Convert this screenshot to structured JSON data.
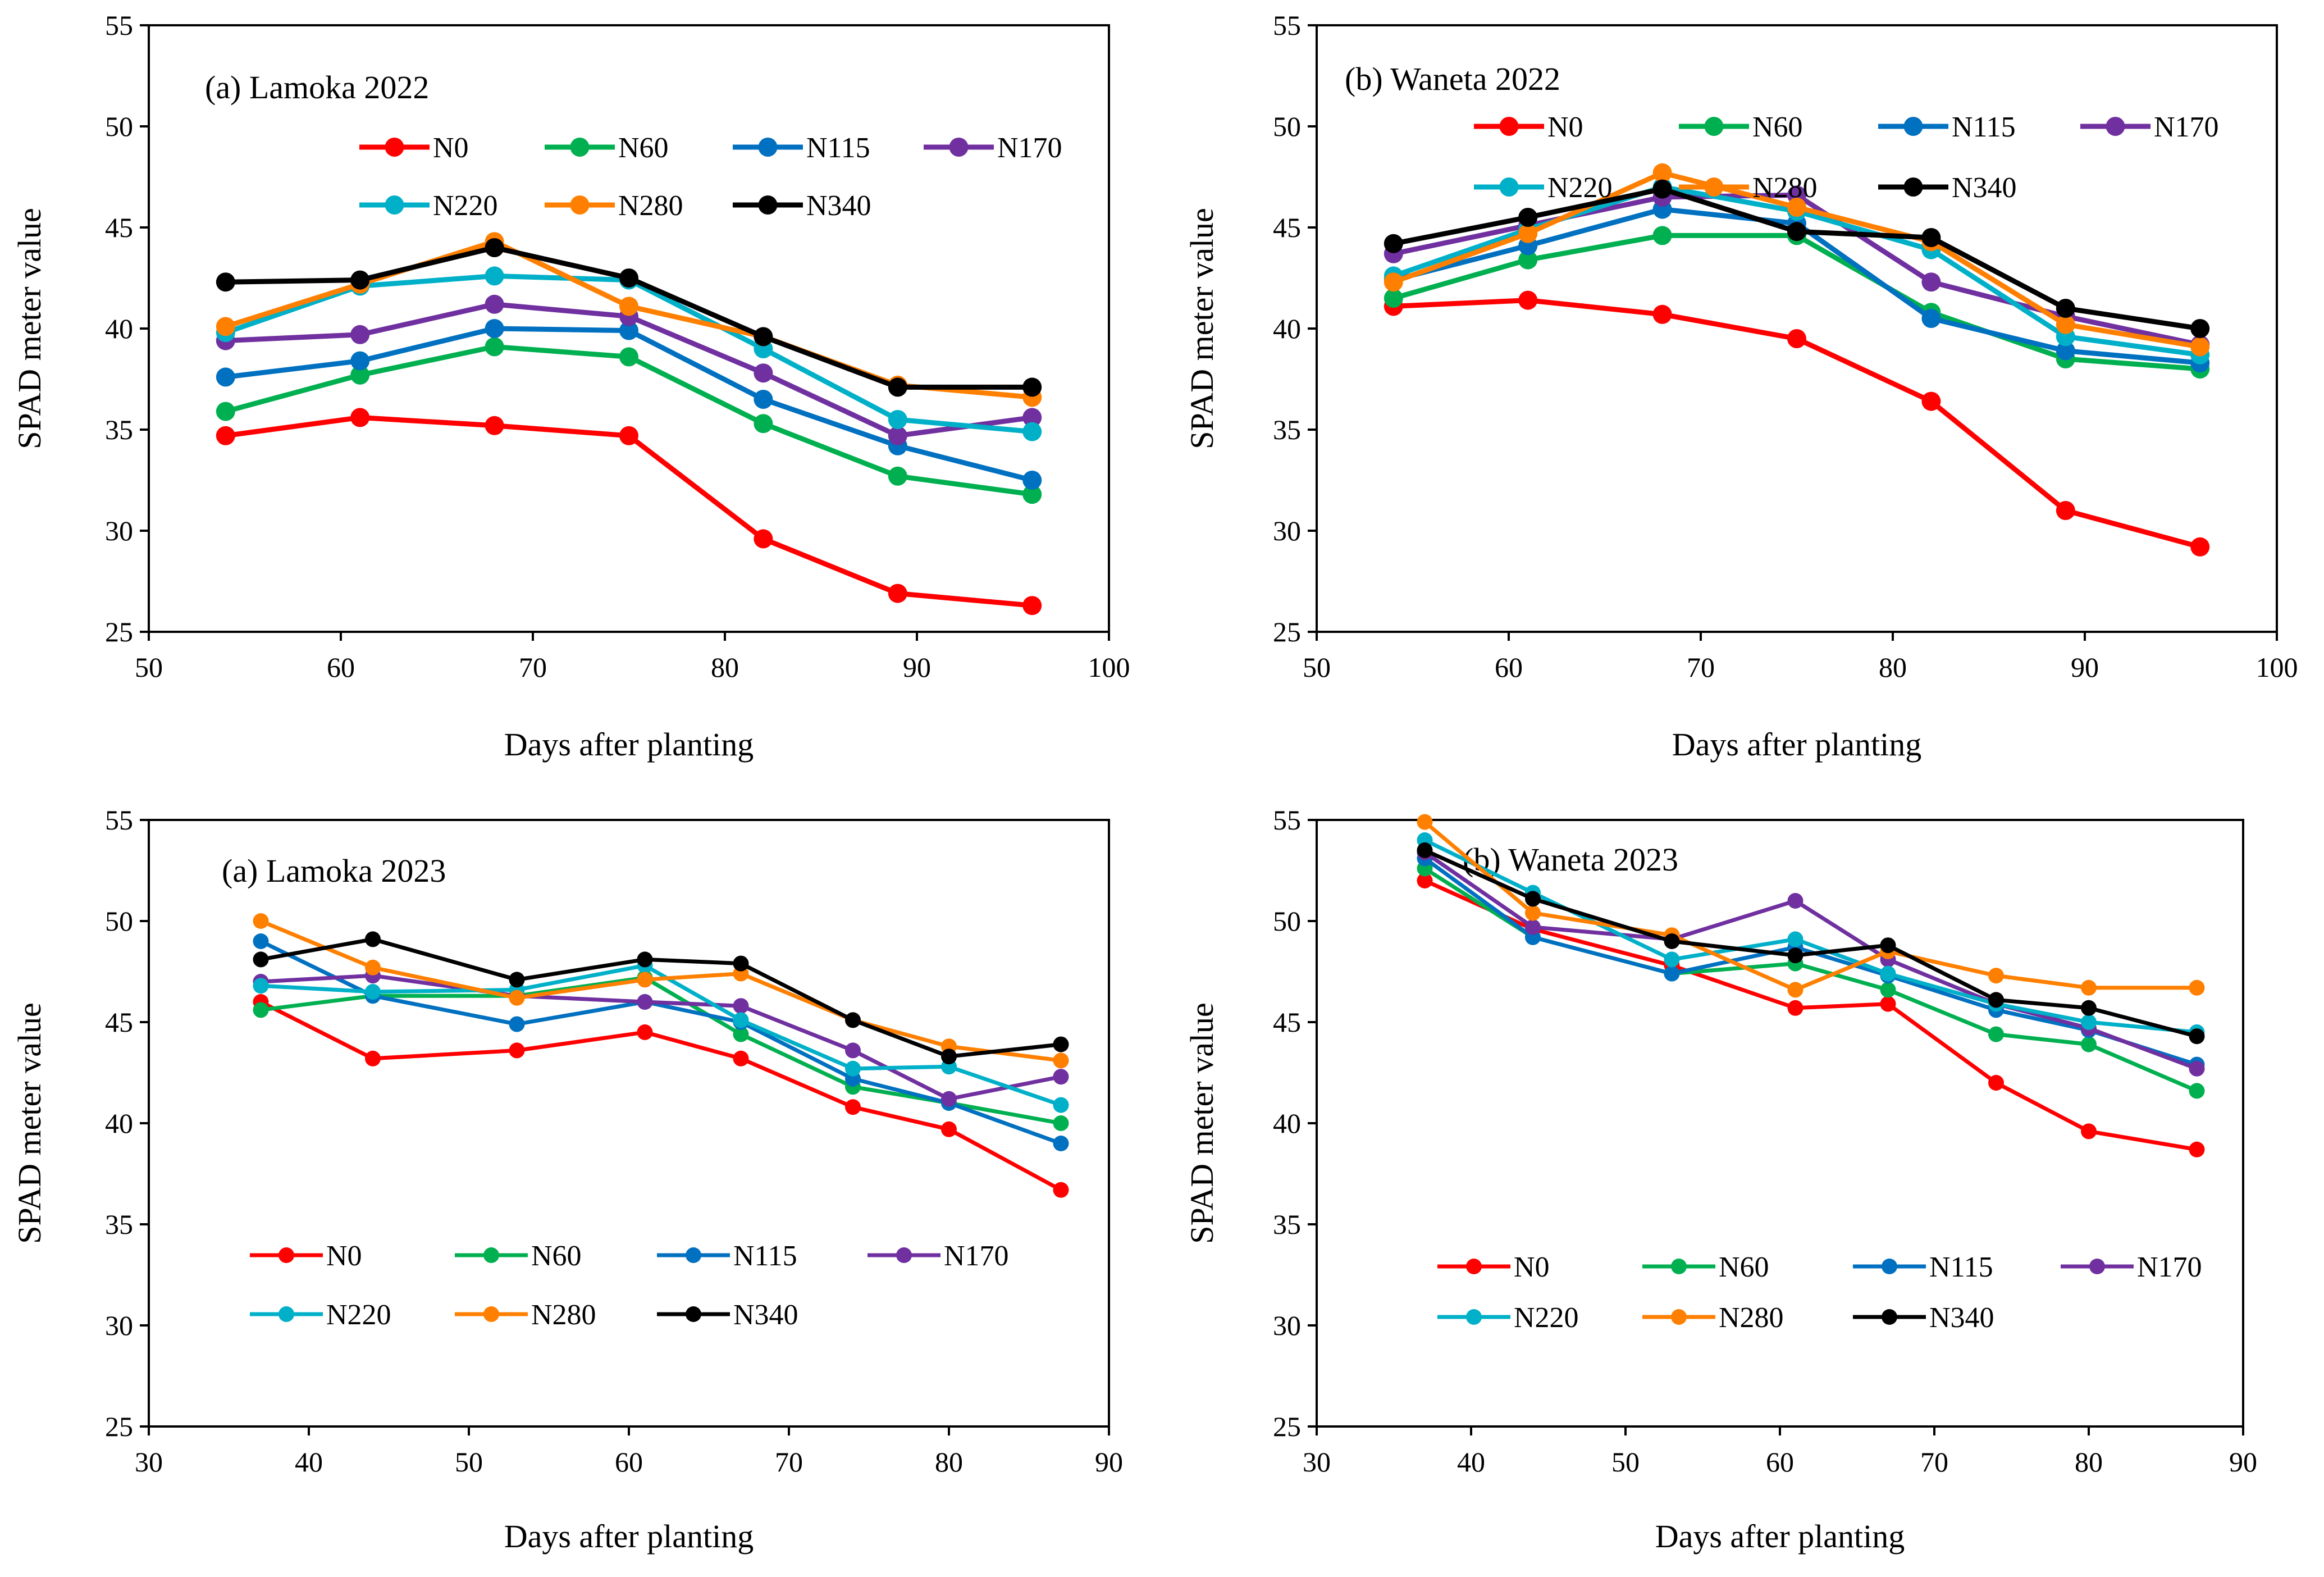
{
  "colors": {
    "N0": "#ff0000",
    "N60": "#00b050",
    "N115": "#0070c0",
    "N170": "#7030a0",
    "N220": "#00b0c8",
    "N280": "#ff7f00",
    "N340": "#000000"
  },
  "chart_data": [
    {
      "type": "line",
      "title": "(a) Lamoka 2022",
      "xlabel": "Days after planting",
      "ylabel": "SPAD meter value",
      "xlim": [
        50,
        100
      ],
      "ylim": [
        25,
        55
      ],
      "xticks": [
        50,
        60,
        70,
        80,
        90,
        100
      ],
      "yticks": [
        25,
        30,
        35,
        40,
        45,
        50,
        55
      ],
      "x": [
        54,
        61,
        68,
        75,
        82,
        89,
        96
      ],
      "series": [
        {
          "name": "N0",
          "values": [
            34.7,
            35.6,
            35.2,
            34.7,
            29.6,
            26.9,
            26.3
          ]
        },
        {
          "name": "N60",
          "values": [
            35.9,
            37.7,
            39.1,
            38.6,
            35.3,
            32.7,
            31.8
          ]
        },
        {
          "name": "N115",
          "values": [
            37.6,
            38.4,
            40.0,
            39.9,
            36.5,
            34.2,
            32.5
          ]
        },
        {
          "name": "N170",
          "values": [
            39.4,
            39.7,
            41.2,
            40.6,
            37.8,
            34.7,
            35.6
          ]
        },
        {
          "name": "N220",
          "values": [
            39.8,
            42.1,
            42.6,
            42.4,
            39.0,
            35.5,
            34.9
          ]
        },
        {
          "name": "N280",
          "values": [
            40.1,
            42.2,
            44.3,
            41.1,
            39.6,
            37.2,
            36.6
          ]
        },
        {
          "name": "N340",
          "values": [
            42.3,
            42.4,
            44.0,
            42.5,
            39.6,
            37.1,
            37.1
          ]
        }
      ]
    },
    {
      "type": "line",
      "title": "(b) Waneta 2022",
      "xlabel": "Days after planting",
      "ylabel": "SPAD meter value",
      "xlim": [
        50,
        100
      ],
      "ylim": [
        25,
        55
      ],
      "xticks": [
        50,
        60,
        70,
        80,
        90,
        100
      ],
      "yticks": [
        25,
        30,
        35,
        40,
        45,
        50,
        55
      ],
      "x": [
        54,
        61,
        68,
        75,
        82,
        89,
        96
      ],
      "series": [
        {
          "name": "N0",
          "values": [
            41.1,
            41.4,
            40.7,
            39.5,
            36.4,
            31.0,
            29.2
          ]
        },
        {
          "name": "N60",
          "values": [
            41.5,
            43.4,
            44.6,
            44.6,
            40.8,
            38.5,
            38.0
          ]
        },
        {
          "name": "N115",
          "values": [
            42.4,
            44.1,
            45.9,
            45.2,
            40.5,
            38.9,
            38.3
          ]
        },
        {
          "name": "N170",
          "values": [
            43.7,
            45.1,
            46.5,
            46.6,
            42.3,
            40.6,
            39.2
          ]
        },
        {
          "name": "N220",
          "values": [
            42.6,
            44.9,
            47.0,
            45.8,
            43.9,
            39.6,
            38.7
          ]
        },
        {
          "name": "N280",
          "values": [
            42.3,
            44.7,
            47.7,
            46.0,
            44.3,
            40.2,
            39.1
          ]
        },
        {
          "name": "N340",
          "values": [
            44.2,
            45.5,
            46.9,
            44.8,
            44.5,
            41.0,
            40.0
          ]
        }
      ]
    },
    {
      "type": "line",
      "title": "(a) Lamoka 2023",
      "xlabel": "Days after planting",
      "ylabel": "SPAD meter value",
      "xlim": [
        30,
        90
      ],
      "ylim": [
        25,
        55
      ],
      "xticks": [
        30,
        40,
        50,
        60,
        70,
        80,
        90
      ],
      "yticks": [
        25,
        30,
        35,
        40,
        45,
        50,
        55
      ],
      "x": [
        37,
        44,
        53,
        61,
        67,
        74,
        80,
        87
      ],
      "series": [
        {
          "name": "N0",
          "values": [
            46.0,
            43.2,
            43.6,
            44.5,
            43.2,
            40.8,
            39.7,
            36.7
          ]
        },
        {
          "name": "N60",
          "values": [
            45.6,
            46.3,
            46.3,
            47.2,
            44.4,
            41.8,
            41.0,
            40.0
          ]
        },
        {
          "name": "N115",
          "values": [
            49.0,
            46.3,
            44.9,
            46.0,
            45.0,
            42.2,
            41.0,
            39.0
          ]
        },
        {
          "name": "N170",
          "values": [
            47.0,
            47.3,
            46.3,
            46.0,
            45.8,
            43.6,
            41.2,
            42.3
          ]
        },
        {
          "name": "N220",
          "values": [
            46.8,
            46.5,
            46.6,
            47.8,
            45.1,
            42.7,
            42.8,
            40.9
          ]
        },
        {
          "name": "N280",
          "values": [
            50.0,
            47.7,
            46.2,
            47.1,
            47.4,
            45.1,
            43.8,
            43.1
          ]
        },
        {
          "name": "N340",
          "values": [
            48.1,
            49.1,
            47.1,
            48.1,
            47.9,
            45.1,
            43.3,
            43.9
          ]
        }
      ]
    },
    {
      "type": "line",
      "title": "(b) Waneta 2023",
      "xlabel": "Days after planting",
      "ylabel": "SPAD meter value",
      "xlim": [
        30,
        90
      ],
      "ylim": [
        25,
        55
      ],
      "xticks": [
        30,
        40,
        50,
        60,
        70,
        80,
        90
      ],
      "yticks": [
        25,
        30,
        35,
        40,
        45,
        50,
        55
      ],
      "x": [
        37,
        44,
        53,
        61,
        67,
        74,
        80,
        87
      ],
      "series": [
        {
          "name": "N0",
          "values": [
            52.0,
            49.6,
            47.8,
            45.7,
            45.9,
            42.0,
            39.6,
            38.7
          ]
        },
        {
          "name": "N60",
          "values": [
            52.6,
            49.2,
            47.4,
            47.9,
            46.6,
            44.4,
            43.9,
            41.6
          ]
        },
        {
          "name": "N115",
          "values": [
            53.1,
            49.2,
            47.4,
            48.7,
            47.3,
            45.6,
            44.6,
            42.9
          ]
        },
        {
          "name": "N170",
          "values": [
            53.4,
            49.7,
            49.1,
            51.0,
            48.1,
            45.9,
            44.7,
            42.7
          ]
        },
        {
          "name": "N220",
          "values": [
            54.0,
            51.4,
            48.1,
            49.1,
            47.4,
            45.9,
            45.0,
            44.5
          ]
        },
        {
          "name": "N280",
          "values": [
            54.9,
            50.4,
            49.3,
            46.6,
            48.5,
            47.3,
            46.7,
            46.7
          ]
        },
        {
          "name": "N340",
          "values": [
            53.5,
            51.1,
            49.0,
            48.3,
            48.8,
            46.1,
            45.7,
            44.3
          ]
        }
      ]
    }
  ]
}
